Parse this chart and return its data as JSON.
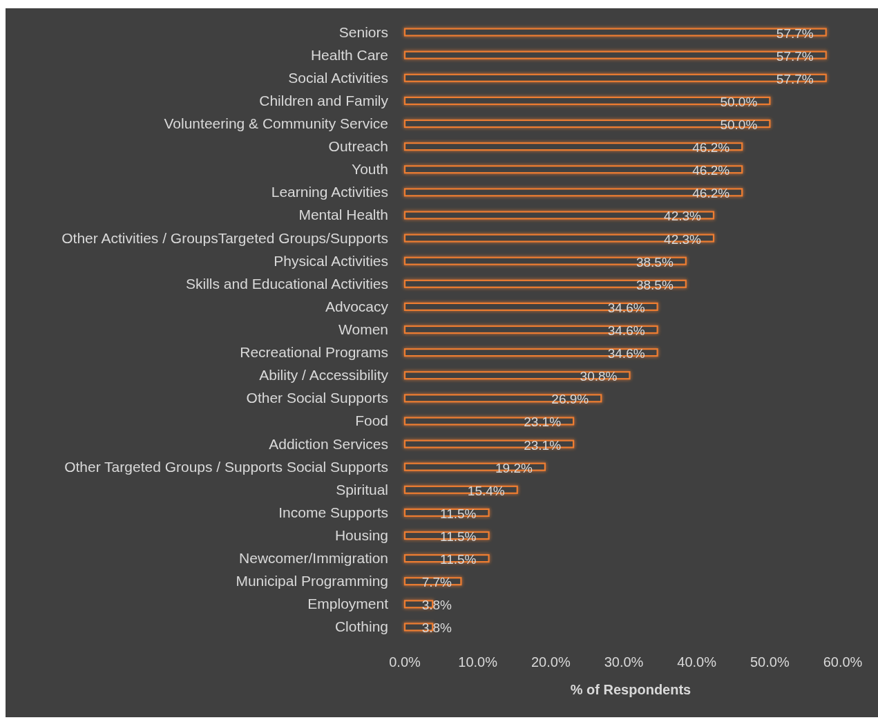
{
  "chart_data": {
    "type": "bar",
    "orientation": "horizontal",
    "xlabel": "% of Respondents",
    "categories": [
      "Seniors",
      "Health Care",
      "Social Activities",
      "Children and Family",
      "Volunteering & Community Service",
      "Outreach",
      "Youth",
      "Learning Activities",
      "Mental Health",
      "Other Activities / GroupsTargeted Groups/Supports",
      "Physical Activities",
      "Skills and Educational Activities",
      "Advocacy",
      "Women",
      "Recreational Programs",
      "Ability / Accessibility",
      "Other Social Supports",
      "Food",
      "Addiction Services",
      "Other Targeted Groups / Supports Social Supports",
      "Spiritual",
      "Income Supports",
      "Housing",
      "Newcomer/Immigration",
      "Municipal Programming",
      "Employment",
      "Clothing"
    ],
    "values": [
      57.7,
      57.7,
      57.7,
      50.0,
      50.0,
      46.2,
      46.2,
      46.2,
      42.3,
      42.3,
      38.5,
      38.5,
      34.6,
      34.6,
      34.6,
      30.8,
      26.9,
      23.1,
      23.1,
      19.2,
      15.4,
      11.5,
      11.5,
      11.5,
      7.7,
      3.8,
      3.8
    ],
    "value_labels": [
      "57.7%",
      "57.7%",
      "57.7%",
      "50.0%",
      "50.0%",
      "46.2%",
      "46.2%",
      "46.2%",
      "42.3%",
      "42.3%",
      "38.5%",
      "38.5%",
      "34.6%",
      "34.6%",
      "34.6%",
      "30.8%",
      "26.9%",
      "23.1%",
      "23.1%",
      "19.2%",
      "15.4%",
      "11.5%",
      "11.5%",
      "11.5%",
      "7.7%",
      "3.8%",
      "3.8%"
    ],
    "color": "#ed7d31",
    "xlim": [
      0,
      60
    ],
    "xticks": [
      {
        "value": 0,
        "label": "0.0%"
      },
      {
        "value": 10,
        "label": "10.0%"
      },
      {
        "value": 20,
        "label": "20.0%"
      },
      {
        "value": 30,
        "label": "30.0%"
      },
      {
        "value": 40,
        "label": "40.0%"
      },
      {
        "value": 50,
        "label": "50.0%"
      },
      {
        "value": 60,
        "label": "60.0%"
      }
    ],
    "grid": false
  }
}
